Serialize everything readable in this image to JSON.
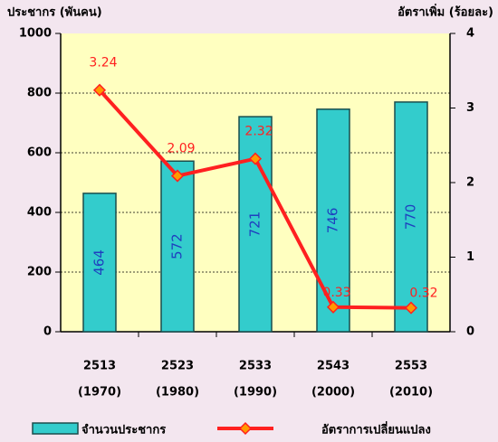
{
  "chart_data": {
    "type": "bar-line",
    "y_label": "ประชากร (พันคน)",
    "y2_label": "อัตราเพิ่ม (ร้อยละ)",
    "categories": [
      [
        "2513",
        "(1970)"
      ],
      [
        "2523",
        "(1980)"
      ],
      [
        "2533",
        "(1990)"
      ],
      [
        "2543",
        "(2000)"
      ],
      [
        "2553",
        "(2010)"
      ]
    ],
    "series": [
      {
        "name": "จำนวนประชากร",
        "type": "bar",
        "color": "#33cccc",
        "values": [
          464,
          572,
          721,
          746,
          770
        ]
      },
      {
        "name": "อัตราการเปลี่ยนแปลง",
        "type": "line",
        "axis": "y2",
        "color": "#ff2020",
        "marker_color": "#ff9900",
        "values": [
          3.24,
          2.09,
          2.32,
          0.33,
          0.32
        ]
      }
    ],
    "ylim": [
      0,
      1000
    ],
    "yticks": [
      0,
      200,
      400,
      600,
      800,
      1000
    ],
    "y2lim": [
      0,
      4
    ],
    "y2ticks": [
      0,
      1,
      2,
      3,
      4
    ],
    "grid": true
  }
}
